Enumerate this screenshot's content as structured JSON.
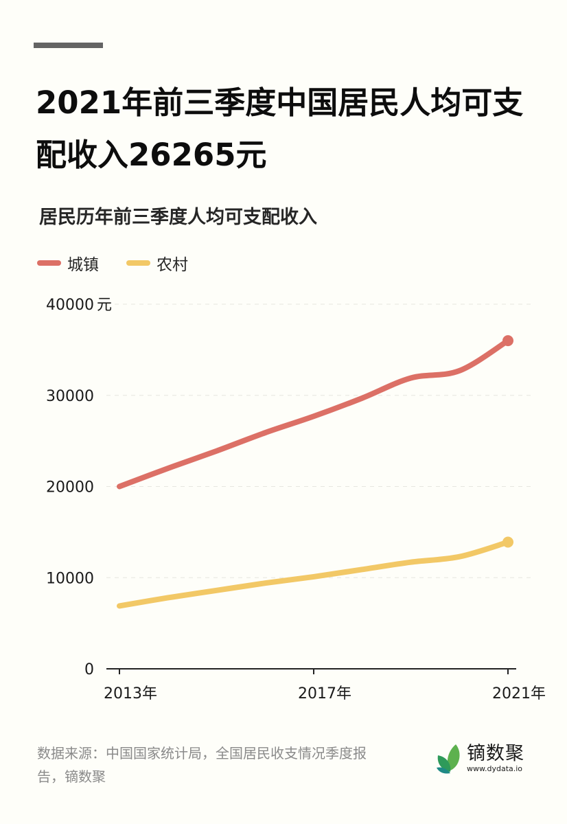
{
  "header": {
    "title": "2021年前三季度中国居民人均可支配收入26265元",
    "subtitle": "居民历年前三季度人均可支配收入"
  },
  "legend": [
    {
      "label": "城镇",
      "color": "#dc7066"
    },
    {
      "label": "农村",
      "color": "#f2c866"
    }
  ],
  "axes": {
    "y_unit": "元",
    "y_ticks": [
      "0",
      "10000",
      "20000",
      "30000",
      "40000"
    ],
    "x_ticks": [
      "2013年",
      "2017年",
      "2021年"
    ]
  },
  "footer": {
    "source": "数据来源：中国国家统计局，全国居民收支情况季度报告，镝数聚",
    "brand_name": "镝数聚",
    "brand_url": "www.dydata.io"
  },
  "chart_data": {
    "type": "line",
    "title": "居民历年前三季度人均可支配收入",
    "xlabel": "",
    "ylabel": "元",
    "ylim": [
      0,
      40000
    ],
    "grid": true,
    "legend_position": "top-left",
    "x": [
      2013,
      2014,
      2015,
      2016,
      2017,
      2018,
      2019,
      2020,
      2021
    ],
    "x_tick_labels": [
      "2013年",
      "2017年",
      "2021年"
    ],
    "y_tick_labels": [
      "0",
      "10000",
      "20000",
      "30000",
      "40000元"
    ],
    "series": [
      {
        "name": "城镇",
        "color": "#dc7066",
        "values": [
          20000,
          22000,
          23900,
          25900,
          27700,
          29700,
          31900,
          32700,
          36000
        ]
      },
      {
        "name": "农村",
        "color": "#f2c866",
        "values": [
          6900,
          7800,
          8600,
          9400,
          10100,
          10900,
          11700,
          12300,
          13900
        ]
      }
    ]
  }
}
